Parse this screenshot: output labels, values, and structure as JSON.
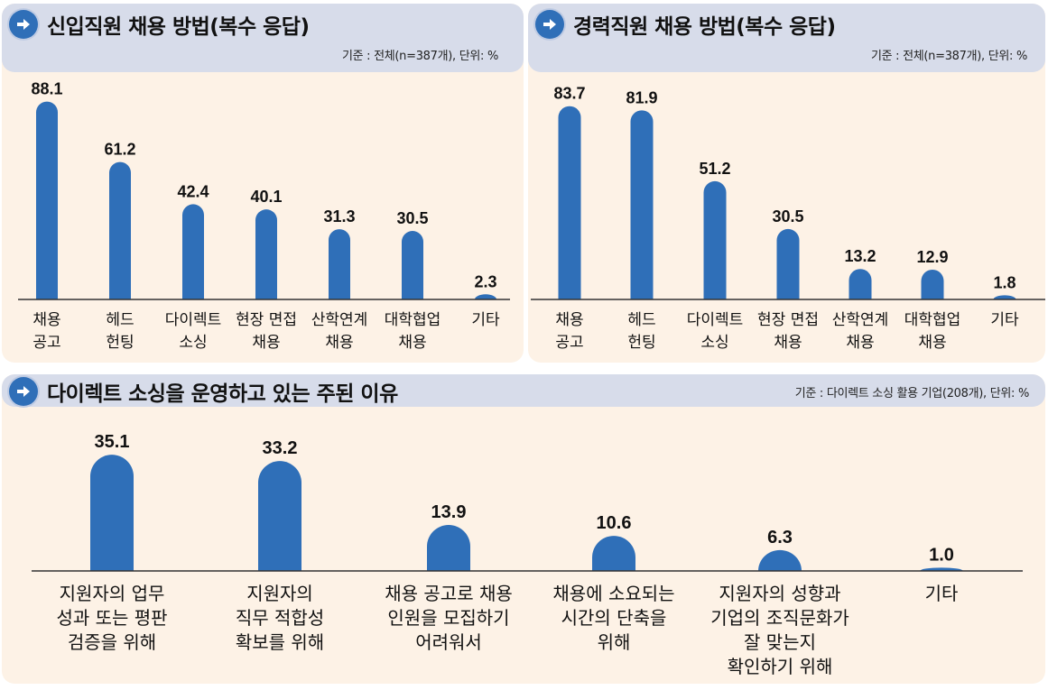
{
  "colors": {
    "bar": "#2f6fb8",
    "header_bg": "#d7dcea",
    "body_bg": "#fdf2e6",
    "axis": "#333333"
  },
  "icons": {
    "section_marker": "arrow-right-circle-icon"
  },
  "chart_data": [
    {
      "type": "bar",
      "title": "신입직원 채용 방법(복수 응답)",
      "subtitle": "기준 : 전체(n=387개), 단위: %",
      "xlabel": "",
      "ylabel": "",
      "ylim": [
        0,
        100
      ],
      "grid": false,
      "categories": [
        [
          "채용",
          "공고"
        ],
        [
          "헤드",
          "헌팅"
        ],
        [
          "다이렉트",
          "소싱"
        ],
        [
          "현장 면접",
          "채용"
        ],
        [
          "산학연계",
          "채용"
        ],
        [
          "대학협업",
          "채용"
        ],
        [
          "기타"
        ]
      ],
      "values": [
        88.1,
        61.2,
        42.4,
        40.1,
        31.3,
        30.5,
        2.3
      ],
      "value_labels": [
        "88.1",
        "61.2",
        "42.4",
        "40.1",
        "31.3",
        "30.5",
        "2.3"
      ]
    },
    {
      "type": "bar",
      "title": "경력직원 채용 방법(복수 응답)",
      "subtitle": "기준 : 전체(n=387개), 단위: %",
      "xlabel": "",
      "ylabel": "",
      "ylim": [
        0,
        100
      ],
      "grid": false,
      "categories": [
        [
          "채용",
          "공고"
        ],
        [
          "헤드",
          "헌팅"
        ],
        [
          "다이렉트",
          "소싱"
        ],
        [
          "현장 면접",
          "채용"
        ],
        [
          "산학연계",
          "채용"
        ],
        [
          "대학협업",
          "채용"
        ],
        [
          "기타"
        ]
      ],
      "values": [
        83.7,
        81.9,
        51.2,
        30.5,
        13.2,
        12.9,
        1.8
      ],
      "value_labels": [
        "83.7",
        "81.9",
        "51.2",
        "30.5",
        "13.2",
        "12.9",
        "1.8"
      ]
    },
    {
      "type": "bar",
      "title": "다이렉트 소싱을 운영하고 있는 주된 이유",
      "subtitle": "기준 : 다이렉트 소싱 활용 기업(208개), 단위: %",
      "xlabel": "",
      "ylabel": "",
      "ylim": [
        0,
        40
      ],
      "grid": false,
      "categories": [
        [
          "지원자의 업무",
          "성과 또는 평판",
          "검증을 위해"
        ],
        [
          "지원자의",
          "직무 적합성",
          "확보를 위해"
        ],
        [
          "채용 공고로 채용",
          "인원을 모집하기",
          "어려워서"
        ],
        [
          "채용에 소요되는",
          "시간의 단축을",
          "위해"
        ],
        [
          "지원자의 성향과",
          "기업의 조직문화가",
          "잘 맞는지",
          "확인하기 위해"
        ],
        [
          "기타"
        ]
      ],
      "values": [
        35.1,
        33.2,
        13.9,
        10.6,
        6.3,
        1.0
      ],
      "value_labels": [
        "35.1",
        "33.2",
        "13.9",
        "10.6",
        "6.3",
        "1.0"
      ]
    }
  ]
}
